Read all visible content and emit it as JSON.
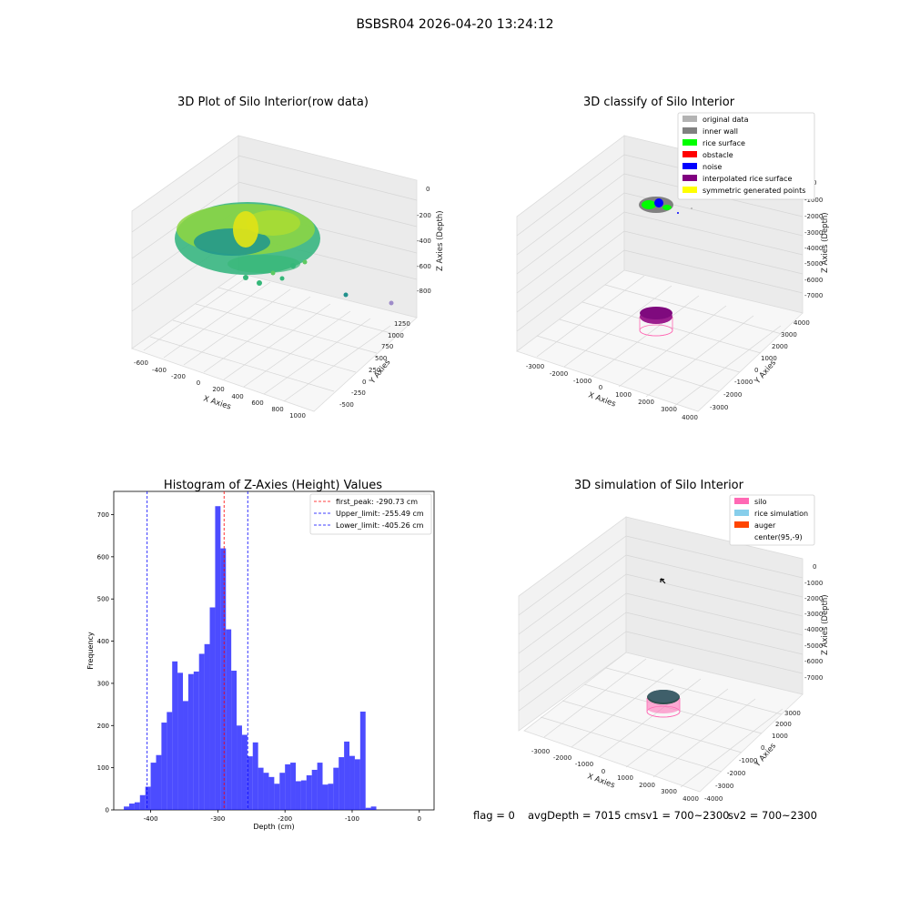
{
  "suptitle": "BSBSR04 2026-04-20 13:24:12",
  "status_line": {
    "flag": "flag = 0",
    "avg_depth": "avgDepth = 7015 cmsv1 = 700~2300",
    "sv2": "sv2 = 700~2300"
  },
  "panels": {
    "raw": {
      "title": "3D Plot of Silo Interior(row data)",
      "xlabel": "X Axies",
      "ylabel": "Y Axies",
      "zlabel": "Z Axies (Depth)",
      "xticks": [
        "-600",
        "-400",
        "-200",
        "0",
        "200",
        "400",
        "600",
        "800",
        "1000"
      ],
      "yticks": [
        "-500",
        "-250",
        "0",
        "250",
        "500",
        "750",
        "1000",
        "1250"
      ],
      "zticks": [
        "0",
        "-200",
        "-400",
        "-600",
        "-800"
      ]
    },
    "classify": {
      "title": "3D classify of Silo Interior",
      "xlabel": "X Axies",
      "ylabel": "Y Axies",
      "zlabel": "Z Axies (Depth)",
      "xticks": [
        "-3000",
        "-2000",
        "-1000",
        "0",
        "1000",
        "2000",
        "3000",
        "4000"
      ],
      "yticks": [
        "-3000",
        "-2000",
        "-1000",
        "0",
        "1000",
        "2000",
        "3000",
        "4000"
      ],
      "zticks": [
        "0",
        "-1000",
        "-2000",
        "-3000",
        "-4000",
        "-5000",
        "-6000",
        "-7000"
      ],
      "legend": [
        {
          "label": "original data",
          "color": "#b3b3b3"
        },
        {
          "label": "inner wall",
          "color": "#808080"
        },
        {
          "label": "rice surface",
          "color": "#00ff00"
        },
        {
          "label": "obstacle",
          "color": "#ff0000"
        },
        {
          "label": "noise",
          "color": "#0000ff"
        },
        {
          "label": "interpolated rice surface",
          "color": "#800080"
        },
        {
          "label": "symmetric generated points",
          "color": "#ffff00"
        }
      ]
    },
    "simulation": {
      "title": "3D simulation of Silo Interior",
      "xlabel": "X Axies",
      "ylabel": "Y Axies",
      "zlabel": "Z Axies (Depth)",
      "xticks": [
        "-3000",
        "-2000",
        "-1000",
        "0",
        "1000",
        "2000",
        "3000",
        "4000"
      ],
      "yticks": [
        "-4000",
        "-3000",
        "-2000",
        "-1000",
        "0",
        "1000",
        "2000",
        "3000"
      ],
      "zticks": [
        "0",
        "-1000",
        "-2000",
        "-3000",
        "-4000",
        "-5000",
        "-6000",
        "-7000"
      ],
      "legend": [
        {
          "label": "silo",
          "color": "#ff69b4"
        },
        {
          "label": "rice simulation",
          "color": "#87ceeb"
        },
        {
          "label": "auger",
          "color": "#ff4500"
        },
        {
          "label": "center(95,-9)",
          "color": ""
        }
      ]
    }
  },
  "chart_data": {
    "type": "bar",
    "title": "Histogram of Z-Axies (Height) Values",
    "xlabel": "Depth (cm)",
    "ylabel": "Frequency",
    "xlim": [
      -455,
      22
    ],
    "ylim": [
      0,
      755
    ],
    "xticks": [
      -400,
      -300,
      -200,
      -100,
      0
    ],
    "yticks": [
      0,
      100,
      200,
      300,
      400,
      500,
      600,
      700
    ],
    "bar_color": "#0000ff",
    "bin_start": -440,
    "bin_width": 8,
    "values": [
      8,
      15,
      18,
      35,
      55,
      112,
      130,
      207,
      232,
      352,
      325,
      258,
      322,
      328,
      370,
      393,
      480,
      720,
      620,
      428,
      330,
      200,
      178,
      127,
      160,
      100,
      88,
      78,
      62,
      88,
      108,
      112,
      68,
      70,
      82,
      95,
      112,
      60,
      62,
      100,
      125,
      162,
      128,
      120,
      233,
      5,
      8
    ],
    "vlines": [
      {
        "label": "first_peak: -290.73 cm",
        "x": -290.73,
        "color": "#ff0000"
      },
      {
        "label": "Upper_limit: -255.49 cm",
        "x": -255.49,
        "color": "#0000ff"
      },
      {
        "label": "Lower_limit: -405.26 cm",
        "x": -405.26,
        "color": "#0000ff"
      }
    ],
    "legend_position": "top-right"
  }
}
